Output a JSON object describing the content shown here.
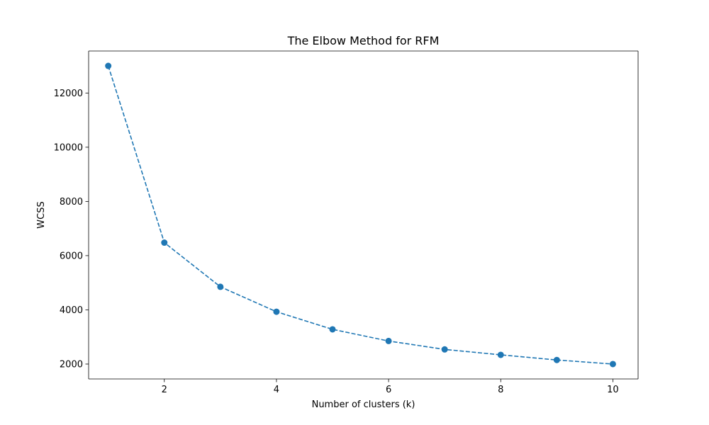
{
  "chart_data": {
    "type": "line",
    "title": "The Elbow Method for RFM",
    "xlabel": "Number of clusters (k)",
    "ylabel": "WCSS",
    "x": [
      1,
      2,
      3,
      4,
      5,
      6,
      7,
      8,
      9,
      10
    ],
    "series": [
      {
        "values": [
          13000,
          6480,
          4850,
          3930,
          3280,
          2850,
          2540,
          2340,
          2150,
          2000
        ],
        "color": "#1f77b4",
        "line_style": "dashed",
        "marker": "circle"
      }
    ],
    "xlim": [
      0.65,
      10.45
    ],
    "ylim": [
      1450,
      13550
    ],
    "xticks": [
      2,
      4,
      6,
      8,
      10
    ],
    "xtick_labels": [
      "2",
      "4",
      "6",
      "8",
      "10"
    ],
    "yticks": [
      2000,
      4000,
      6000,
      8000,
      10000,
      12000
    ],
    "ytick_labels": [
      "2000",
      "4000",
      "6000",
      "8000",
      "10000",
      "12000"
    ],
    "grid": false,
    "legend": "none"
  }
}
